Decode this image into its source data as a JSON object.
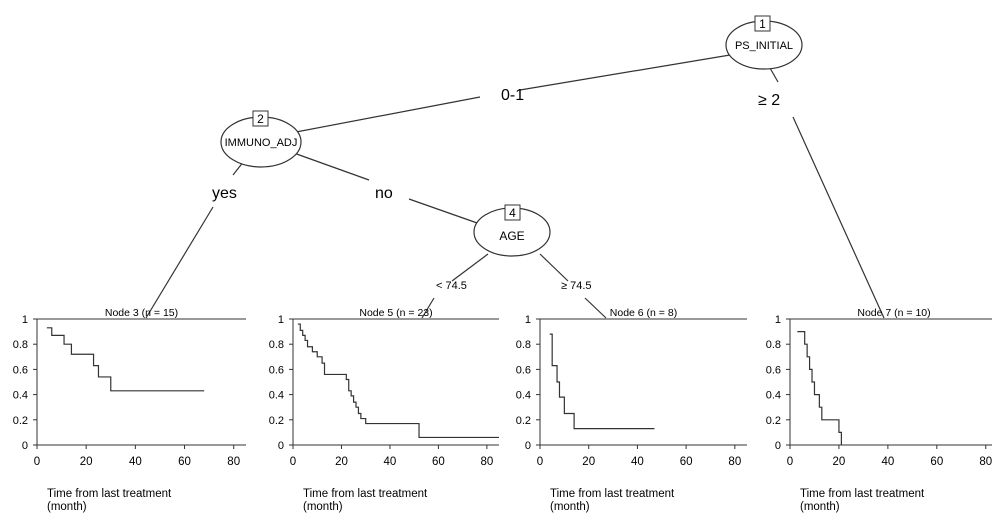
{
  "tree": {
    "nodes": [
      {
        "id": "1",
        "variable": "PS_INITIAL"
      },
      {
        "id": "2",
        "variable": "IMMUNO_ADJ"
      },
      {
        "id": "4",
        "variable": "AGE"
      }
    ],
    "edges": {
      "n1_left": "0-1",
      "n1_right": "≥ 2",
      "n2_left": "yes",
      "n2_right": "no",
      "n4_left": "< 74.5",
      "n4_right": "≥ 74.5"
    }
  },
  "chart_data": [
    {
      "type": "line",
      "title": "Node 3 (n = 15)",
      "xlabel": "Time from last treatment\n(month)",
      "ylabel": "",
      "xlim": [
        0,
        85
      ],
      "ylim": [
        0,
        1
      ],
      "xticks": [
        0,
        20,
        40,
        60,
        80
      ],
      "yticks": [
        0,
        0.2,
        0.4,
        0.6,
        0.8,
        1
      ],
      "series": [
        {
          "x": [
            4,
            6,
            11,
            14,
            23,
            25,
            30,
            68
          ],
          "y": [
            0.93,
            0.87,
            0.8,
            0.72,
            0.63,
            0.54,
            0.43,
            0.43
          ]
        }
      ]
    },
    {
      "type": "line",
      "title": "Node 5 (n = 23)",
      "xlabel": "Time from last treatment\n(month)",
      "ylabel": "",
      "xlim": [
        0,
        85
      ],
      "ylim": [
        0,
        1
      ],
      "xticks": [
        0,
        20,
        40,
        60,
        80
      ],
      "yticks": [
        0,
        0.2,
        0.4,
        0.6,
        0.8,
        1
      ],
      "series": [
        {
          "x": [
            2,
            3,
            4,
            5,
            6,
            8,
            10,
            12,
            13,
            22,
            23,
            24,
            25,
            26,
            27,
            28,
            30,
            52,
            85
          ],
          "y": [
            0.96,
            0.91,
            0.87,
            0.83,
            0.78,
            0.74,
            0.7,
            0.65,
            0.56,
            0.52,
            0.43,
            0.39,
            0.34,
            0.3,
            0.25,
            0.21,
            0.17,
            0.06,
            0.06
          ]
        }
      ]
    },
    {
      "type": "line",
      "title": "Node 6 (n = 8)",
      "xlabel": "Time from last treatment\n(month)",
      "ylabel": "",
      "xlim": [
        0,
        85
      ],
      "ylim": [
        0,
        1
      ],
      "xticks": [
        0,
        20,
        40,
        60,
        80
      ],
      "yticks": [
        0,
        0.2,
        0.4,
        0.6,
        0.8,
        1
      ],
      "series": [
        {
          "x": [
            4,
            5,
            7,
            8,
            10,
            14,
            47
          ],
          "y": [
            0.88,
            0.63,
            0.5,
            0.38,
            0.25,
            0.13,
            0.13
          ]
        }
      ]
    },
    {
      "type": "line",
      "title": "Node 7 (n = 10)",
      "xlabel": "Time from last treatment\n(month)",
      "ylabel": "",
      "xlim": [
        0,
        85
      ],
      "ylim": [
        0,
        1
      ],
      "xticks": [
        0,
        20,
        40,
        60,
        80
      ],
      "yticks": [
        0,
        0.2,
        0.4,
        0.6,
        0.8,
        1
      ],
      "series": [
        {
          "x": [
            3,
            6,
            7,
            8,
            9,
            10,
            12,
            13,
            20,
            21
          ],
          "y": [
            0.9,
            0.8,
            0.7,
            0.6,
            0.5,
            0.4,
            0.3,
            0.2,
            0.1,
            0.0
          ]
        }
      ]
    }
  ]
}
